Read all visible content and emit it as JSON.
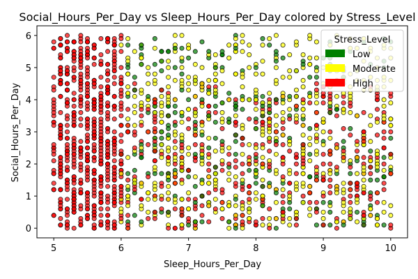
{
  "chart_data": {
    "type": "scatter",
    "title": "Social_Hours_Per_Day vs Sleep_Hours_Per_Day colored by Stress_Level",
    "xlabel": "Sleep_Hours_Per_Day",
    "ylabel": "Social_Hours_Per_Day",
    "xlim": [
      4.75,
      10.25
    ],
    "ylim": [
      -0.3,
      6.3
    ],
    "xticks": [
      "5",
      "6",
      "7",
      "8",
      "9",
      "10"
    ],
    "yticks": [
      "0",
      "1",
      "2",
      "3",
      "4",
      "5",
      "6"
    ],
    "grid": false,
    "legend": {
      "title": "Stress_Level",
      "placement": "top-right",
      "entries": [
        {
          "label": "Low",
          "color": "#008000"
        },
        {
          "label": "Moderate",
          "color": "#ffff00"
        },
        {
          "label": "High",
          "color": "#ff0000"
        }
      ]
    },
    "series": [
      {
        "name": "High",
        "color": "#ff0000",
        "description": "concentrated at Sleep 5.0-6.0, also scattered across 6-10 at lower social hours",
        "x_range": [
          5.0,
          10.0
        ],
        "y_range": [
          0.0,
          6.0
        ]
      },
      {
        "name": "Moderate",
        "color": "#ffff00",
        "x_range": [
          6.0,
          10.0
        ],
        "y_range": [
          0.0,
          6.0
        ]
      },
      {
        "name": "Low",
        "color": "#008000",
        "x_range": [
          6.0,
          10.0
        ],
        "y_range": [
          0.0,
          6.0
        ]
      }
    ]
  }
}
